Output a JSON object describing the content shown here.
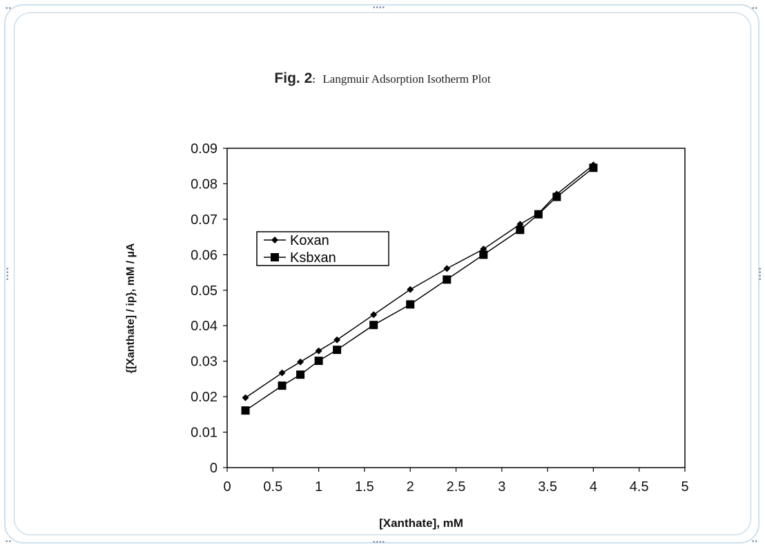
{
  "figure": {
    "label": "Fig. 2",
    "label_suffix": ":",
    "caption": "Langmuir Adsorption Isotherm Plot"
  },
  "chart_data": {
    "type": "line",
    "title": "Langmuir Adsorption Isotherm Plot",
    "xlabel": "[Xanthate], mM",
    "ylabel": "{[Xanthate] / ip}, mM / µA",
    "xlim": [
      0,
      5
    ],
    "ylim": [
      0,
      0.09
    ],
    "x_ticks": [
      "0",
      "0.5",
      "1",
      "1.5",
      "2",
      "2.5",
      "3",
      "3.5",
      "4",
      "4.5",
      "5"
    ],
    "y_ticks": [
      "0",
      "0.01",
      "0.02",
      "0.03",
      "0.04",
      "0.05",
      "0.06",
      "0.07",
      "0.08",
      "0.09"
    ],
    "grid": false,
    "legend_position": "left-center",
    "series": [
      {
        "name": "Koxan",
        "marker": "diamond",
        "color": "#000000",
        "x": [
          0.2,
          0.6,
          0.8,
          1.0,
          1.2,
          1.6,
          2.0,
          2.4,
          2.8,
          3.2,
          3.4,
          3.6,
          4.0
        ],
        "values": [
          0.0197,
          0.0267,
          0.0298,
          0.0329,
          0.036,
          0.0431,
          0.0502,
          0.0561,
          0.0616,
          0.0686,
          0.0716,
          0.0771,
          0.0853
        ]
      },
      {
        "name": "Ksbxan",
        "marker": "square",
        "color": "#000000",
        "x": [
          0.2,
          0.6,
          0.8,
          1.0,
          1.2,
          1.6,
          2.0,
          2.4,
          2.8,
          3.2,
          3.4,
          3.6,
          4.0
        ],
        "values": [
          0.0161,
          0.0231,
          0.0262,
          0.0301,
          0.0332,
          0.0402,
          0.046,
          0.053,
          0.06,
          0.067,
          0.0714,
          0.0763,
          0.0845
        ]
      }
    ]
  }
}
